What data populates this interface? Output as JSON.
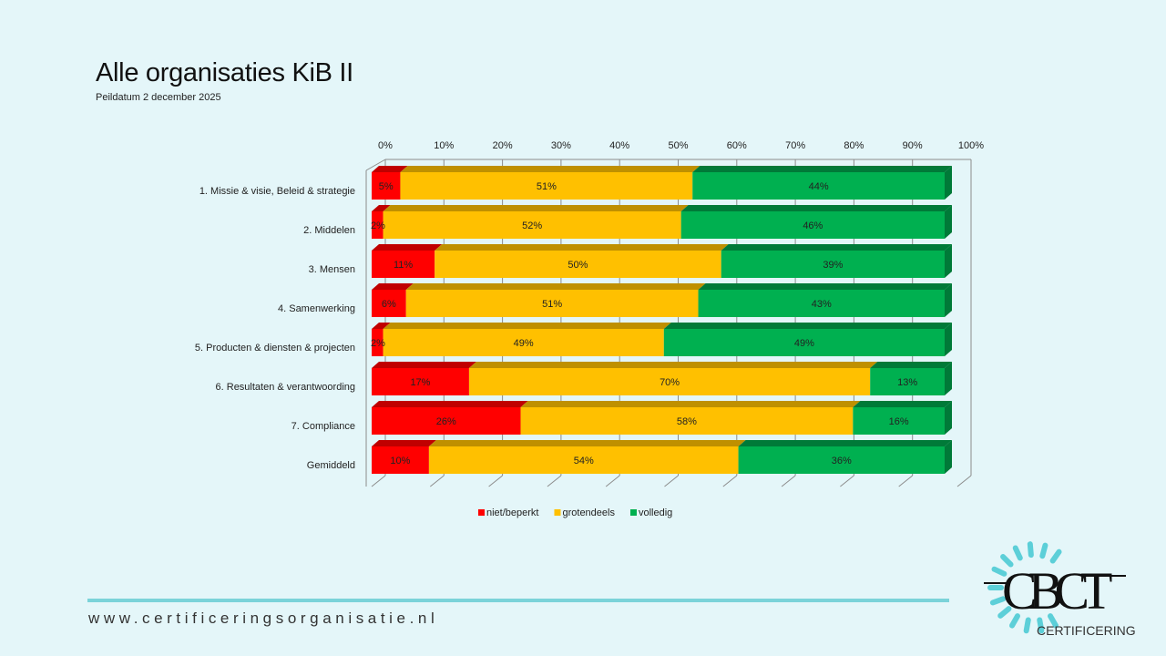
{
  "header": {
    "title": "Alle organisaties KiB II",
    "subtitle": "Peildatum 2 december 2025"
  },
  "chart_data": {
    "type": "bar",
    "orientation": "horizontal",
    "stacked": "100%",
    "style": "3d",
    "title": "Alle organisaties KiB II",
    "subtitle": "Peildatum 2 december 2025",
    "categories": [
      "1. Missie & visie, Beleid & strategie",
      "2. Middelen",
      "3. Mensen",
      "4. Samenwerking",
      "5. Producten & diensten & projecten",
      "6. Resultaten & verantwoording",
      "7. Compliance",
      "Gemiddeld"
    ],
    "series": [
      {
        "name": "niet/beperkt",
        "color": "#ff0000",
        "top_color": "#c00000",
        "values": [
          5,
          2,
          11,
          6,
          2,
          17,
          26,
          10
        ]
      },
      {
        "name": "grotendeels",
        "color": "#ffc000",
        "top_color": "#bf9000",
        "values": [
          51,
          52,
          50,
          51,
          49,
          70,
          58,
          54
        ]
      },
      {
        "name": "volledig",
        "color": "#00b050",
        "top_color": "#007a38",
        "values": [
          44,
          46,
          39,
          43,
          49,
          13,
          16,
          36
        ]
      }
    ],
    "x_axis": {
      "position": "top",
      "range": [
        0,
        100
      ],
      "ticks": [
        "0%",
        "10%",
        "20%",
        "30%",
        "40%",
        "50%",
        "60%",
        "70%",
        "80%",
        "90%",
        "100%"
      ]
    },
    "xlabel": "",
    "ylabel": "",
    "grid": true,
    "legend": {
      "position": "bottom",
      "entries": [
        "niet/beperkt",
        "grotendeels",
        "volledig"
      ]
    },
    "data_labels": true
  },
  "footer": {
    "url": "www.certificeringsorganisatie.nl"
  },
  "logo": {
    "mark": "CBCT",
    "tagline": "CERTIFICERING",
    "accent_color": "#5ccfd8"
  }
}
